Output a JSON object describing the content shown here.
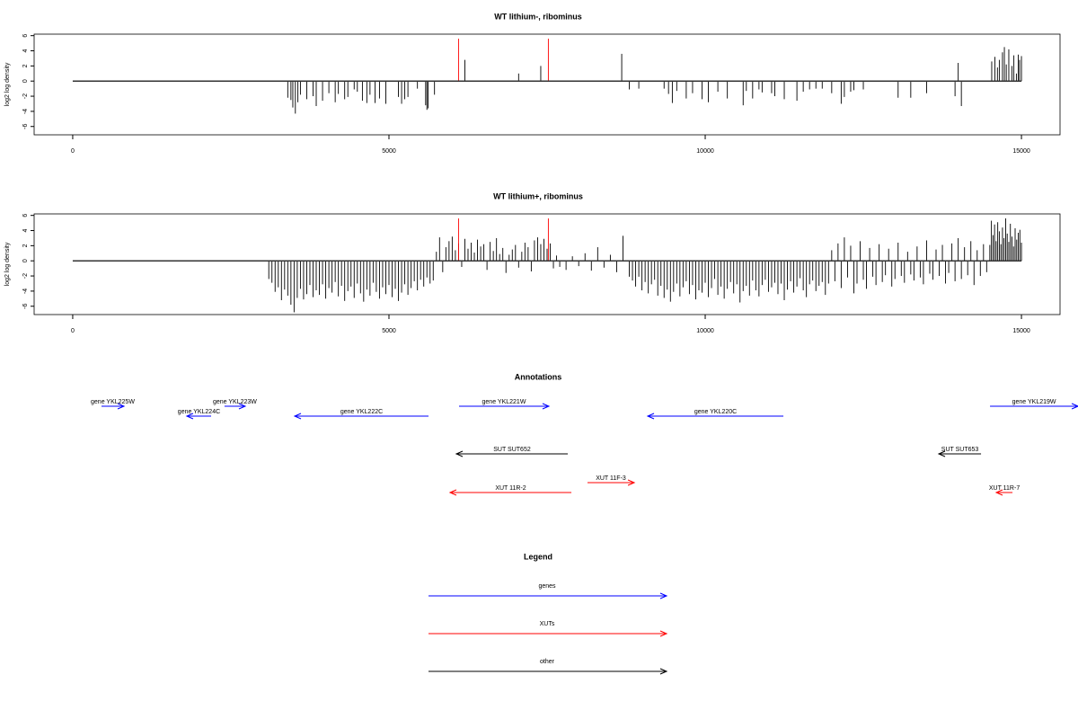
{
  "chart_data": [
    {
      "type": "coverage",
      "title": "WT lithium-, ribominus",
      "y_label": "log2 log density",
      "xlim": [
        -610,
        15610
      ],
      "xticks": [
        0,
        5000,
        10000,
        15000
      ],
      "ylim": [
        -7.1,
        6.2
      ],
      "yticks": [
        -6,
        -4,
        -2,
        0,
        2,
        4,
        6
      ],
      "series": [
        {
          "color": "#000000",
          "x": [
            3400,
            3450,
            3480,
            3520,
            3560,
            3600,
            3700,
            3800,
            3850,
            3950,
            4050,
            4150,
            4200,
            4300,
            4350,
            4450,
            4500,
            4580,
            4650,
            4700,
            4780,
            4850,
            4950,
            5150,
            5200,
            5250,
            5300,
            5450,
            5580,
            5600,
            5620,
            5720,
            6200,
            7050,
            7400,
            8680,
            8800,
            8950,
            9350,
            9420,
            9480,
            9550,
            9700,
            9800,
            9950,
            10050,
            10200,
            10350,
            10600,
            10650,
            10750,
            10850,
            10900,
            11050,
            11100,
            11250,
            11450,
            11550,
            11650,
            11750,
            11850,
            12000,
            12150,
            12200,
            12300,
            12350,
            12500,
            13050,
            13250,
            13500,
            13950,
            14000,
            14050,
            14530,
            14580,
            14620,
            14650,
            14700,
            14730,
            14760,
            14800,
            14850,
            14880,
            14920,
            14950,
            14970,
            15000
          ],
          "values": [
            -2.2,
            -2.5,
            -3.5,
            -4.3,
            -2.8,
            -1.8,
            -2.4,
            -2.0,
            -3.3,
            -2.6,
            -1.6,
            -2.8,
            -1.7,
            -2.4,
            -2.1,
            -1.1,
            -1.4,
            -2.6,
            -2.9,
            -1.8,
            -2.9,
            -2.3,
            -3.0,
            -2.1,
            -3.0,
            -2.4,
            -2.1,
            -1.0,
            -3.2,
            -3.8,
            -3.6,
            -1.8,
            2.8,
            1.0,
            2.0,
            3.6,
            -1.1,
            -1.0,
            -1.0,
            -1.7,
            -2.9,
            -1.3,
            -2.3,
            -1.6,
            -2.4,
            -2.8,
            -1.4,
            -2.3,
            -3.2,
            -1.3,
            -2.3,
            -1.1,
            -1.5,
            -1.6,
            -2.0,
            -2.4,
            -2.6,
            -1.4,
            -1.1,
            -1.0,
            -1.0,
            -1.6,
            -3.0,
            -2.1,
            -1.4,
            -1.2,
            -1.1,
            -2.2,
            -2.2,
            -1.6,
            -2.0,
            2.4,
            -3.3,
            2.6,
            3.2,
            1.8,
            2.8,
            3.8,
            4.5,
            2.2,
            4.2,
            2.0,
            3.4,
            1.0,
            3.5,
            2.8,
            3.3
          ]
        },
        {
          "color": "#ff0000",
          "x": [
            6100,
            7520
          ],
          "values": [
            5.6,
            5.6
          ]
        }
      ]
    },
    {
      "type": "coverage",
      "title": "WT lithium+, ribominus",
      "y_label": "log2 log density",
      "xlim": [
        -610,
        15610
      ],
      "xticks": [
        0,
        5000,
        10000,
        15000
      ],
      "ylim": [
        -7.1,
        6.2
      ],
      "yticks": [
        -6,
        -4,
        -2,
        0,
        2,
        4,
        6
      ],
      "series": [
        {
          "color": "#000000",
          "x": [
            3100,
            3150,
            3200,
            3250,
            3300,
            3350,
            3400,
            3450,
            3500,
            3550,
            3600,
            3650,
            3700,
            3750,
            3800,
            3850,
            3900,
            3950,
            4000,
            4050,
            4100,
            4150,
            4200,
            4250,
            4300,
            4350,
            4400,
            4450,
            4500,
            4550,
            4600,
            4650,
            4700,
            4750,
            4800,
            4850,
            4900,
            4950,
            5000,
            5050,
            5100,
            5150,
            5200,
            5250,
            5300,
            5350,
            5400,
            5450,
            5500,
            5550,
            5600,
            5650,
            5700,
            5750,
            5800,
            5850,
            5900,
            5950,
            6000,
            6050,
            6100,
            6150,
            6200,
            6250,
            6300,
            6350,
            6400,
            6450,
            6500,
            6550,
            6600,
            6650,
            6700,
            6750,
            6800,
            6850,
            6900,
            6950,
            7000,
            7050,
            7100,
            7150,
            7200,
            7250,
            7300,
            7350,
            7400,
            7450,
            7500,
            7550,
            7600,
            7650,
            7700,
            7800,
            7900,
            8000,
            8100,
            8200,
            8300,
            8400,
            8500,
            8600,
            8700,
            8800,
            8850,
            8900,
            8950,
            9000,
            9050,
            9100,
            9150,
            9200,
            9250,
            9300,
            9350,
            9400,
            9450,
            9500,
            9550,
            9600,
            9650,
            9700,
            9750,
            9800,
            9850,
            9900,
            9950,
            10000,
            10050,
            10100,
            10150,
            10200,
            10250,
            10300,
            10350,
            10400,
            10450,
            10500,
            10550,
            10600,
            10650,
            10700,
            10750,
            10800,
            10850,
            10900,
            10950,
            11000,
            11050,
            11100,
            11150,
            11200,
            11250,
            11300,
            11350,
            11400,
            11450,
            11500,
            11550,
            11600,
            11650,
            11700,
            11750,
            11800,
            11850,
            11900,
            11950,
            12000,
            12050,
            12100,
            12150,
            12200,
            12250,
            12300,
            12350,
            12400,
            12450,
            12500,
            12550,
            12600,
            12650,
            12700,
            12750,
            12800,
            12850,
            12900,
            12950,
            13000,
            13050,
            13100,
            13150,
            13200,
            13250,
            13300,
            13350,
            13400,
            13450,
            13500,
            13550,
            13600,
            13650,
            13700,
            13750,
            13800,
            13850,
            13900,
            13950,
            14000,
            14050,
            14100,
            14150,
            14200,
            14250,
            14300,
            14350,
            14400,
            14450,
            14500,
            14525,
            14550,
            14575,
            14600,
            14625,
            14650,
            14675,
            14700,
            14725,
            14750,
            14775,
            14800,
            14825,
            14850,
            14875,
            14900,
            14925,
            14950,
            14975,
            15000
          ],
          "values": [
            -2.4,
            -2.9,
            -4.1,
            -3.5,
            -5.2,
            -3.8,
            -4.6,
            -5.8,
            -6.8,
            -4.9,
            -3.7,
            -5.1,
            -4.4,
            -3.2,
            -4.8,
            -3.9,
            -4.5,
            -3.1,
            -5.0,
            -3.6,
            -4.2,
            -2.8,
            -4.7,
            -3.3,
            -5.3,
            -4.0,
            -3.4,
            -4.9,
            -3.0,
            -4.3,
            -5.4,
            -3.8,
            -4.6,
            -2.9,
            -4.1,
            -5.0,
            -3.5,
            -4.4,
            -3.2,
            -4.8,
            -3.7,
            -5.3,
            -4.2,
            -3.1,
            -4.5,
            -3.6,
            -2.7,
            -3.9,
            -2.5,
            -3.4,
            -2.2,
            -3.0,
            -2.6,
            1.2,
            3.1,
            -1.5,
            1.8,
            2.6,
            3.2,
            1.4,
            2.3,
            -0.8,
            2.9,
            1.6,
            2.4,
            1.1,
            2.8,
            1.9,
            2.2,
            -1.2,
            2.5,
            1.3,
            3.0,
            0.9,
            1.7,
            -1.6,
            0.8,
            1.5,
            2.1,
            -0.9,
            1.2,
            2.4,
            1.8,
            -1.4,
            2.7,
            3.1,
            2.2,
            2.9,
            1.6,
            2.3,
            -1.0,
            0.7,
            -0.8,
            -1.2,
            0.6,
            -0.7,
            1.0,
            -1.3,
            1.8,
            -0.9,
            0.8,
            -1.5,
            3.3,
            -2.1,
            -2.6,
            -3.4,
            -2.1,
            -3.9,
            -2.8,
            -4.3,
            -3.1,
            -2.5,
            -4.6,
            -3.3,
            -4.9,
            -3.8,
            -5.4,
            -4.1,
            -3.0,
            -4.7,
            -3.5,
            -2.7,
            -4.4,
            -3.2,
            -5.1,
            -3.9,
            -4.2,
            -2.9,
            -4.8,
            -3.6,
            -2.4,
            -4.5,
            -3.4,
            -5.0,
            -3.7,
            -2.8,
            -4.3,
            -3.1,
            -5.5,
            -4.0,
            -3.3,
            -4.6,
            -2.6,
            -3.9,
            -4.7,
            -3.2,
            -2.5,
            -4.1,
            -3.5,
            -2.9,
            -4.4,
            -3.0,
            -5.2,
            -3.8,
            -2.7,
            -4.2,
            -3.4,
            -2.3,
            -3.9,
            -4.8,
            -3.1,
            -2.6,
            -4.0,
            -3.3,
            -2.8,
            -4.5,
            -3.0,
            1.4,
            -2.7,
            2.3,
            -3.6,
            3.1,
            -2.2,
            2.0,
            -4.3,
            -3.0,
            2.6,
            -2.5,
            -3.7,
            1.7,
            -2.1,
            -3.2,
            2.2,
            -2.8,
            -1.9,
            1.6,
            -3.4,
            -2.4,
            2.4,
            -2.0,
            -2.9,
            1.2,
            -1.8,
            -2.6,
            1.9,
            -2.2,
            -3.1,
            2.7,
            -1.7,
            -2.5,
            1.5,
            -2.0,
            2.1,
            -3.0,
            -1.6,
            2.3,
            -2.7,
            3.0,
            -2.4,
            1.8,
            -1.9,
            2.6,
            -3.2,
            1.4,
            -2.0,
            2.2,
            -1.5,
            2.1,
            5.3,
            3.4,
            4.8,
            2.6,
            5.1,
            3.9,
            2.2,
            4.4,
            3.0,
            5.6,
            3.6,
            2.5,
            4.9,
            3.2,
            1.9,
            4.3,
            2.8,
            3.7,
            4.1,
            2.4
          ]
        },
        {
          "color": "#ff0000",
          "x": [
            6100,
            7520
          ],
          "values": [
            5.6,
            5.6
          ]
        }
      ]
    },
    {
      "type": "annotation",
      "title": "Annotations",
      "xlim": [
        -610,
        15610
      ],
      "legend_title": "Legend",
      "series": [
        {
          "name": "genes",
          "color": "#0000ff"
        },
        {
          "name": "XUTs",
          "color": "#ff0000"
        },
        {
          "name": "other",
          "color": "#000000"
        }
      ],
      "features": [
        {
          "label": "gene YKL225W",
          "start": 455,
          "end": 810,
          "strand": "+",
          "group": 0
        },
        {
          "label": "gene YKL224C",
          "start": 1804,
          "end": 2188,
          "strand": "-",
          "group": 0
        },
        {
          "label": "gene YKL223W",
          "start": 2400,
          "end": 2727,
          "strand": "+",
          "group": 0
        },
        {
          "label": "gene YKL222C",
          "start": 3509,
          "end": 5625,
          "strand": "-",
          "group": 0
        },
        {
          "label": "gene YKL221W",
          "start": 6108,
          "end": 7528,
          "strand": "+",
          "group": 0
        },
        {
          "label": "gene YKL220C",
          "start": 9091,
          "end": 11236,
          "strand": "-",
          "group": 0
        },
        {
          "label": "gene YKL219W",
          "start": 14503,
          "end": 15895,
          "strand": "+",
          "group": 0
        },
        {
          "label": "SUT SUT652",
          "start": 6065,
          "end": 7827,
          "strand": "-",
          "group": 2
        },
        {
          "label": "SUT SUT653",
          "start": 13693,
          "end": 14361,
          "strand": "-",
          "group": 2
        },
        {
          "label": "XUT 11R-2",
          "start": 5966,
          "end": 7884,
          "strand": "-",
          "group": 1
        },
        {
          "label": "XUT 11F-3",
          "start": 8139,
          "end": 8878,
          "strand": "+",
          "group": 1
        },
        {
          "label": "XUT 11R-7",
          "start": 14602,
          "end": 14858,
          "strand": "-",
          "group": 1
        }
      ]
    }
  ]
}
